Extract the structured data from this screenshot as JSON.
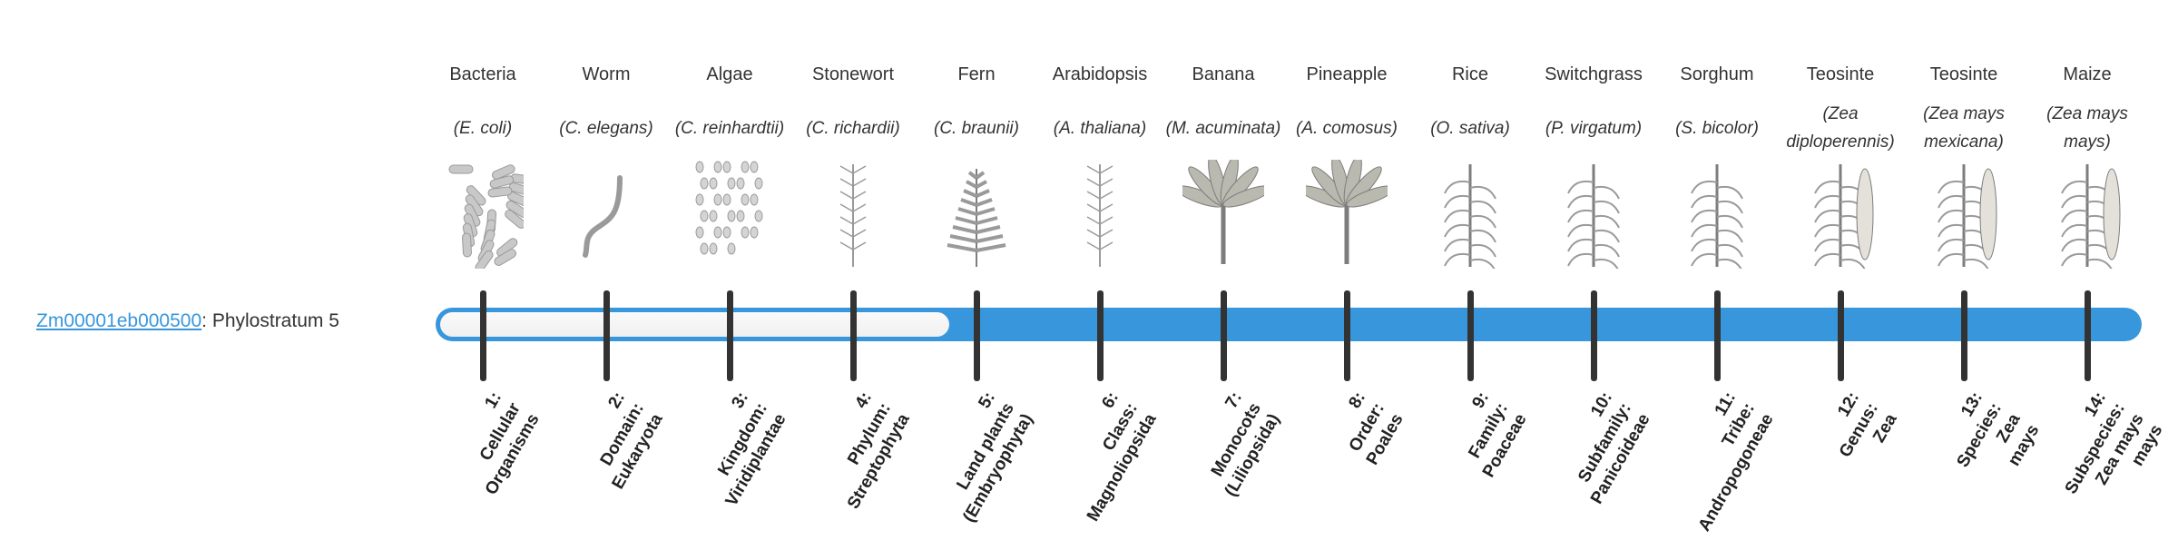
{
  "gene": {
    "id": "Zm00001eb000500",
    "suffix": ": Phylostratum 5"
  },
  "phylostratum": 5,
  "total_strata": 14,
  "colors": {
    "bar": "#3897dc",
    "track": "#f5f5f5",
    "tick": "#333333",
    "link": "#3897dc"
  },
  "organisms": [
    {
      "common": "Bacteria",
      "scientific": "(E. coli)",
      "icon": "bacteria-illustration",
      "rank": [
        "1:",
        "Cellular",
        "Organisms"
      ]
    },
    {
      "common": "Worm",
      "scientific": "(C. elegans)",
      "icon": "worm-illustration",
      "rank": [
        "2:",
        "Domain:",
        "Eukaryota"
      ]
    },
    {
      "common": "Algae",
      "scientific": "(C. reinhardtii)",
      "icon": "algae-illustration",
      "rank": [
        "3:",
        "Kingdom:",
        "Viridiplantae"
      ]
    },
    {
      "common": "Stonewort",
      "scientific": "(C. richardii)",
      "icon": "stonewort-illustration",
      "rank": [
        "4:",
        "Phylum:",
        "Streptophyta"
      ]
    },
    {
      "common": "Fern",
      "scientific": "(C. braunii)",
      "icon": "fern-illustration",
      "rank": [
        "5:",
        "Land plants",
        "(Embryophyta)"
      ]
    },
    {
      "common": "Arabidopsis",
      "scientific": "(A. thaliana)",
      "icon": "arabidopsis-illustration",
      "rank": [
        "6:",
        "Class:",
        "Magnoliopsida"
      ]
    },
    {
      "common": "Banana",
      "scientific": "(M. acuminata)",
      "icon": "banana-illustration",
      "rank": [
        "7:",
        "Monocots",
        "(Liliopsida)"
      ]
    },
    {
      "common": "Pineapple",
      "scientific": "(A. comosus)",
      "icon": "pineapple-illustration",
      "rank": [
        "8:",
        "Order:",
        "Poales"
      ]
    },
    {
      "common": "Rice",
      "scientific": "(O. sativa)",
      "icon": "rice-illustration",
      "rank": [
        "9:",
        "Family:",
        "Poaceae"
      ]
    },
    {
      "common": "Switchgrass",
      "scientific": "(P. virgatum)",
      "icon": "switchgrass-illustration",
      "rank": [
        "10:",
        "Subfamily:",
        "Panicoideae"
      ]
    },
    {
      "common": "Sorghum",
      "scientific": "(S. bicolor)",
      "icon": "sorghum-illustration",
      "rank": [
        "11:",
        "Tribe:",
        "Andropogoneae"
      ]
    },
    {
      "common": "Teosinte",
      "scientific": "(Zea diploperennis)",
      "icon": "teosinte-illustration",
      "rank": [
        "12:",
        "Genus:",
        "Zea"
      ]
    },
    {
      "common": "Teosinte",
      "scientific": "(Zea mays mexicana)",
      "icon": "teosinte-illustration",
      "rank": [
        "13:",
        "Species:",
        "Zea",
        "mays"
      ]
    },
    {
      "common": "Maize",
      "scientific": "(Zea mays mays)",
      "icon": "maize-illustration",
      "rank": [
        "14:",
        "Subspecies:",
        "Zea mays",
        "mays"
      ]
    }
  ]
}
